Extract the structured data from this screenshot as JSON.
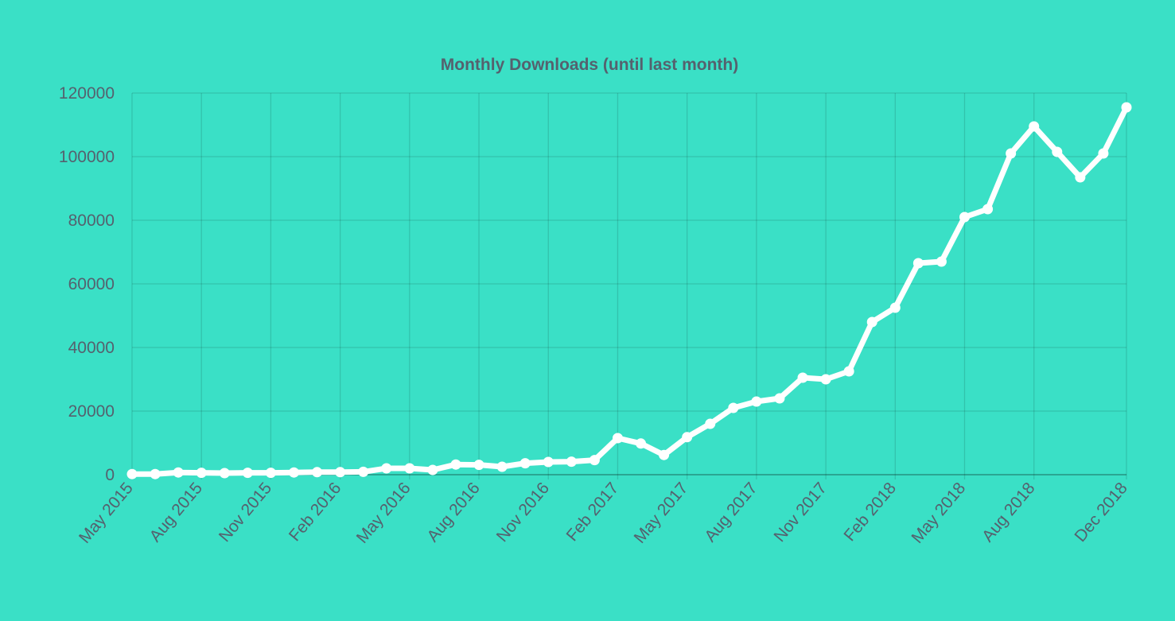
{
  "chart_data": {
    "type": "line",
    "title": "Monthly Downloads (until last month)",
    "xlabel": "",
    "ylabel": "",
    "ylim": [
      0,
      120000
    ],
    "yticks": [
      0,
      20000,
      40000,
      60000,
      80000,
      100000,
      120000
    ],
    "xtick_labels": [
      "May 2015",
      "Aug 2015",
      "Nov 2015",
      "Feb 2016",
      "May 2016",
      "Aug 2016",
      "Nov 2016",
      "Feb 2017",
      "May 2017",
      "Aug 2017",
      "Nov 2017",
      "Feb 2018",
      "May 2018",
      "Aug 2018",
      "Dec 2018"
    ],
    "grid": true,
    "legend": "none",
    "colors": {
      "background": "#3ae0c6",
      "line": "#ffffff",
      "text": "#55616e"
    },
    "x": [
      "May 2015",
      "Jun 2015",
      "Jul 2015",
      "Aug 2015",
      "Sep 2015",
      "Oct 2015",
      "Nov 2015",
      "Dec 2015",
      "Jan 2016",
      "Feb 2016",
      "Mar 2016",
      "Apr 2016",
      "May 2016",
      "Jun 2016",
      "Jul 2016",
      "Aug 2016",
      "Sep 2016",
      "Oct 2016",
      "Nov 2016",
      "Dec 2016",
      "Jan 2017",
      "Feb 2017",
      "Mar 2017",
      "Apr 2017",
      "May 2017",
      "Jun 2017",
      "Jul 2017",
      "Aug 2017",
      "Sep 2017",
      "Oct 2017",
      "Nov 2017",
      "Dec 2017",
      "Jan 2018",
      "Feb 2018",
      "Mar 2018",
      "Apr 2018",
      "May 2018",
      "Jun 2018",
      "Jul 2018",
      "Aug 2018",
      "Sep 2018",
      "Oct 2018",
      "Nov 2018",
      "Dec 2018"
    ],
    "series": [
      {
        "values": [
          200,
          200,
          700,
          600,
          500,
          600,
          600,
          700,
          800,
          800,
          900,
          2000,
          2000,
          1500,
          3200,
          3100,
          2500,
          3600,
          4000,
          4100,
          4600,
          11500,
          9800,
          6200,
          11800,
          16000,
          21000,
          23000,
          24000,
          30500,
          30000,
          32500,
          48000,
          52500,
          66500,
          67000,
          81000,
          83500,
          101000,
          109500,
          101500,
          93500,
          101000,
          115500
        ]
      }
    ]
  }
}
